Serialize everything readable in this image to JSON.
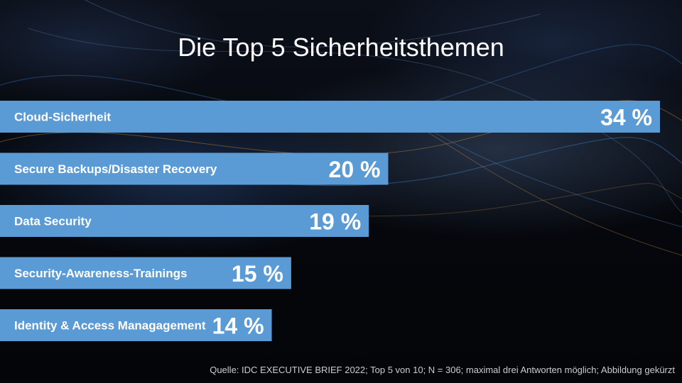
{
  "chart_data": {
    "type": "bar",
    "orientation": "horizontal",
    "title": "Die Top 5 Sicherheitsthemen",
    "categories": [
      "Cloud-Sicherheit",
      "Secure Backups/Disaster Recovery",
      "Data Security",
      "Security-Awareness-Trainings",
      "Identity & Access Managagement"
    ],
    "values": [
      34,
      20,
      19,
      15,
      14
    ],
    "value_labels": [
      "34 %",
      "20 %",
      "19 %",
      "15 %",
      "14 %"
    ],
    "unit": "%",
    "grid": false,
    "legend": "none",
    "bar_color": "#5b9bd5"
  },
  "footer": {
    "source": "Quelle: IDC EXECUTIVE BRIEF 2022;  Top 5 von 10; N = 306; maximal drei Antworten möglich; Abbildung gekürzt"
  }
}
